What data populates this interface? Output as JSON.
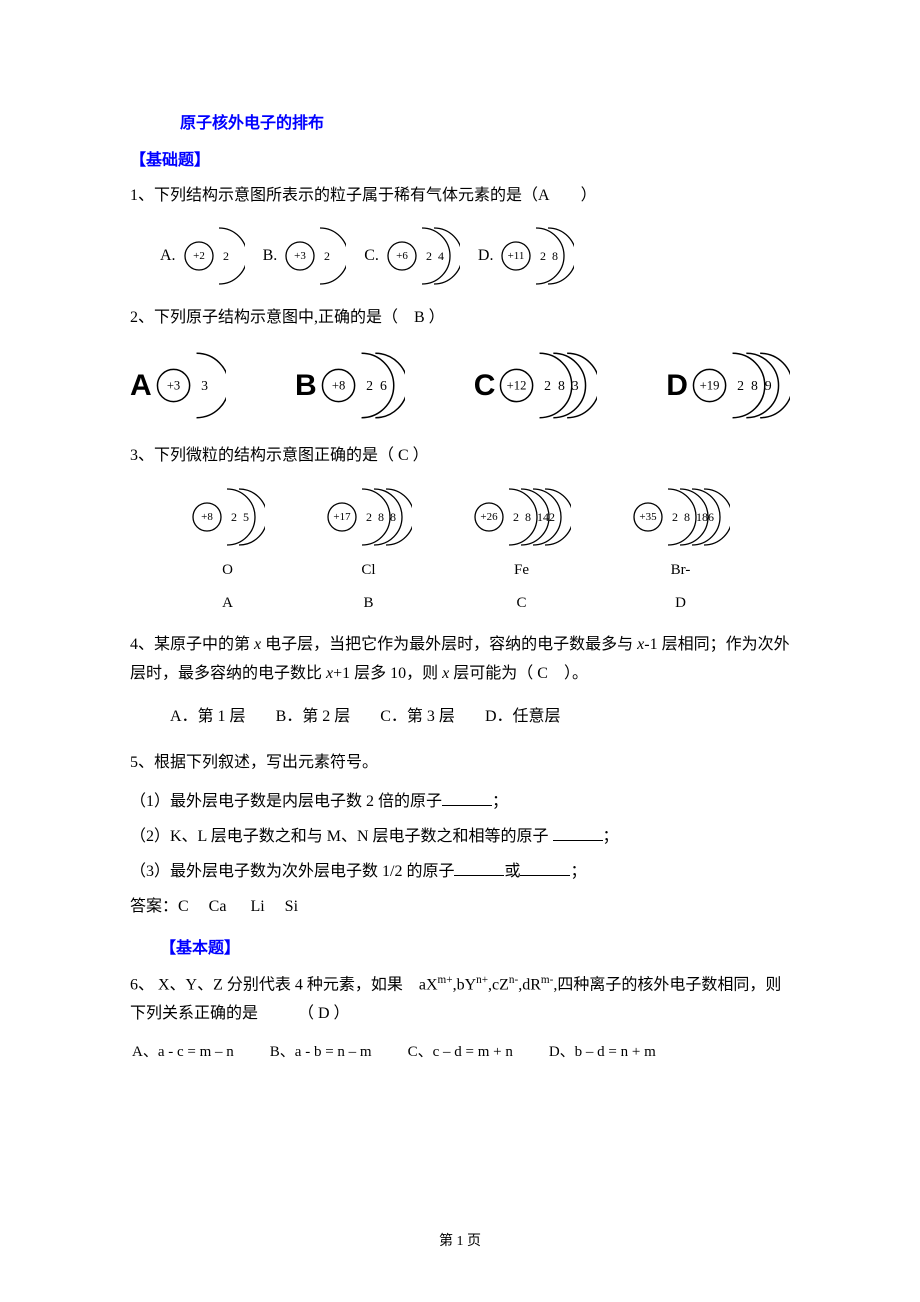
{
  "title": "原子核外电子的排布",
  "section_basic": "【基础题】",
  "section_basic2": "【基本题】",
  "q1": {
    "text": "1、下列结构示意图所表示的粒子属于稀有气体元素的是（A　　）",
    "options": [
      {
        "label": "A.",
        "nucleus": "+2",
        "shells": [
          2
        ]
      },
      {
        "label": "B.",
        "nucleus": "+3",
        "shells": [
          2
        ]
      },
      {
        "label": "C.",
        "nucleus": "+6",
        "shells": [
          2,
          4
        ]
      },
      {
        "label": "D.",
        "nucleus": "+11",
        "shells": [
          2,
          8
        ]
      }
    ]
  },
  "q2": {
    "text": "2、下列原子结构示意图中,正确的是（　B ）",
    "options": [
      {
        "label": "A",
        "nucleus": "+3",
        "shells": [
          3
        ]
      },
      {
        "label": "B",
        "nucleus": "+8",
        "shells": [
          2,
          6
        ]
      },
      {
        "label": "C",
        "nucleus": "+12",
        "shells": [
          2,
          8,
          3
        ]
      },
      {
        "label": "D",
        "nucleus": "+19",
        "shells": [
          2,
          8,
          9
        ]
      }
    ]
  },
  "q3": {
    "text": "3、下列微粒的结构示意图正确的是（ C ）",
    "items": [
      {
        "nucleus": "+8",
        "shells": [
          2,
          5
        ],
        "sym": "O",
        "opt": "A"
      },
      {
        "nucleus": "+17",
        "shells": [
          2,
          8,
          8
        ],
        "sym": "Cl",
        "opt": "B"
      },
      {
        "nucleus": "+26",
        "shells": [
          2,
          8,
          14,
          2
        ],
        "sym": "Fe",
        "opt": "C"
      },
      {
        "nucleus": "+35",
        "shells": [
          2,
          8,
          18,
          6
        ],
        "sym": "Br-",
        "opt": "D"
      }
    ]
  },
  "q4": {
    "text1": "4、某原子中的第",
    "text2": "电子层，当把它作为最外层时，容纳的电子数最多与",
    "text3": "-1 层相同；作为次外层时，最多容纳的电子数比",
    "text4": "+1 层多 10，则",
    "text5": "层可能为（ C　）。",
    "A": "A．第 1 层",
    "B": "B．第 2 层",
    "C": "C．第 3 层",
    "D": "D．任意层"
  },
  "q5": {
    "text": "5、根据下列叙述，写出元素符号。",
    "s1a": "（1）最外层电子数是内层电子数 2 倍的原子",
    "s1b": "；",
    "s2a": "（2）K、L 层电子数之和与 M、N 层电子数之和相等的原子 ",
    "s2b": "；",
    "s3a": "（3）最外层电子数为次外层电子数 1/2 的原子",
    "s3b": "或",
    "s3c": "；",
    "ans": "答案：C　 Ca 　 Li　  Si"
  },
  "q6": {
    "text1": "6、 X、Y、Z 分别代表 4 种元素，如果　aX",
    "sup1": "m+",
    "text2": ",bY",
    "sup2": "n+",
    "text3": ",cZ",
    "sup3": "n-",
    "text4": ",dR",
    "sup4": "m-",
    "text5": ",四种离子的核外电子数相同，则下列关系正确的是　　　（ D  ）",
    "A": "A、a - c = m – n",
    "B": "B、a - b = n – m",
    "C": "C、c – d = m + n",
    "D": "D、b – d = n + m"
  },
  "footer": "第 1 页",
  "colors": {
    "blue": "#0000ff",
    "black": "#000000",
    "bg": "#ffffff"
  }
}
